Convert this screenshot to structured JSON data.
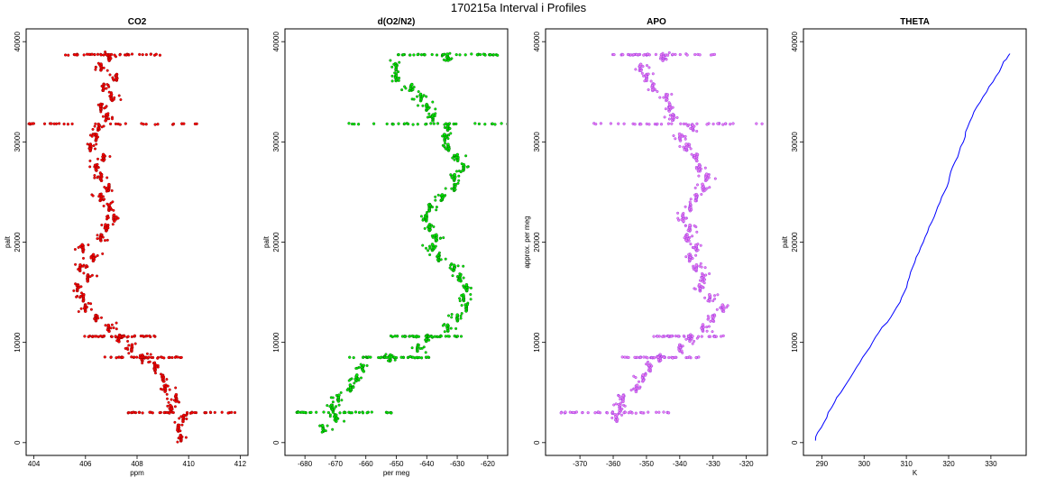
{
  "figure": {
    "title": "170215a   Interval i Profiles"
  },
  "chart_data": [
    {
      "type": "scatter",
      "title": "CO2",
      "xlabel": "ppm",
      "ylabel": "palt",
      "xlim": [
        404,
        412
      ],
      "ylim": [
        0,
        40000
      ],
      "xticks": [
        404,
        406,
        408,
        410,
        412
      ],
      "yticks": [
        0,
        10000,
        20000,
        30000,
        40000
      ],
      "marker_color": "#ff0000",
      "edge_color": "#7a0000",
      "series": [
        {
          "profile": [
            [
              409.7,
              500
            ],
            [
              409.6,
              1500
            ],
            [
              409.8,
              2500
            ],
            [
              409.3,
              3500
            ],
            [
              409.5,
              4500
            ],
            [
              409.1,
              5500
            ],
            [
              409.0,
              6500
            ],
            [
              408.7,
              7500
            ],
            [
              408.2,
              8500
            ],
            [
              407.8,
              9500
            ],
            [
              407.3,
              10500
            ],
            [
              406.9,
              11500
            ],
            [
              406.4,
              12500
            ],
            [
              406.0,
              13500
            ],
            [
              405.9,
              14500
            ],
            [
              405.7,
              15500
            ],
            [
              406.1,
              16500
            ],
            [
              405.8,
              17500
            ],
            [
              406.3,
              18500
            ],
            [
              405.9,
              19500
            ],
            [
              406.6,
              20500
            ],
            [
              406.8,
              21500
            ],
            [
              407.1,
              22500
            ],
            [
              406.9,
              23500
            ],
            [
              406.6,
              24500
            ],
            [
              406.9,
              25500
            ],
            [
              406.6,
              26500
            ],
            [
              406.4,
              27500
            ],
            [
              406.7,
              28500
            ],
            [
              406.2,
              29500
            ],
            [
              406.4,
              30500
            ],
            [
              406.5,
              31500
            ],
            [
              406.8,
              32500
            ],
            [
              406.6,
              33500
            ],
            [
              407.0,
              34500
            ],
            [
              406.7,
              35500
            ],
            [
              407.2,
              36500
            ],
            [
              406.6,
              37500
            ],
            [
              406.9,
              38500
            ]
          ]
        }
      ]
    },
    {
      "type": "scatter",
      "title": "d(O2/N2)",
      "xlabel": "per meg",
      "ylabel": "palt",
      "xlim": [
        -684,
        -616
      ],
      "ylim": [
        0,
        40000
      ],
      "xticks": [
        -680,
        -670,
        -660,
        -650,
        -640,
        -630,
        -620
      ],
      "yticks": [
        0,
        10000,
        20000,
        30000,
        40000
      ],
      "marker_color": "#00ee00",
      "edge_color": "#005500",
      "series": [
        {
          "profile": [
            [
              -674,
              1500
            ],
            [
              -670,
              2500
            ],
            [
              -671,
              3500
            ],
            [
              -669,
              4500
            ],
            [
              -665,
              5500
            ],
            [
              -663,
              6500
            ],
            [
              -661,
              7500
            ],
            [
              -652,
              8500
            ],
            [
              -643,
              9500
            ],
            [
              -640,
              10500
            ],
            [
              -633,
              11500
            ],
            [
              -630,
              12500
            ],
            [
              -627,
              13500
            ],
            [
              -628,
              14500
            ],
            [
              -627,
              15500
            ],
            [
              -629,
              16500
            ],
            [
              -631,
              17500
            ],
            [
              -636,
              18500
            ],
            [
              -638,
              19500
            ],
            [
              -637,
              20500
            ],
            [
              -639,
              21500
            ],
            [
              -640,
              22500
            ],
            [
              -639,
              23500
            ],
            [
              -635,
              24500
            ],
            [
              -631,
              25500
            ],
            [
              -631,
              26500
            ],
            [
              -628,
              27500
            ],
            [
              -630,
              28500
            ],
            [
              -633,
              29500
            ],
            [
              -634,
              30500
            ],
            [
              -633,
              31500
            ],
            [
              -638,
              32500
            ],
            [
              -640,
              33500
            ],
            [
              -642,
              34500
            ],
            [
              -645,
              35500
            ],
            [
              -650,
              36500
            ],
            [
              -650,
              37500
            ],
            [
              -633,
              38500
            ]
          ]
        }
      ]
    },
    {
      "type": "scatter",
      "title": "APO",
      "xlabel": "",
      "ylabel": "approx. per meg",
      "xlim": [
        -378,
        -316
      ],
      "ylim": [
        0,
        40000
      ],
      "xticks": [
        -370,
        -360,
        -350,
        -340,
        -330,
        -320
      ],
      "yticks": [
        0,
        10000,
        20000,
        30000,
        40000
      ],
      "marker_color": "#ee82ee",
      "edge_color": "#8a2be2",
      "series": [
        {
          "profile": [
            [
              -359,
              2500
            ],
            [
              -358,
              3500
            ],
            [
              -357,
              4500
            ],
            [
              -353,
              5500
            ],
            [
              -351,
              6500
            ],
            [
              -349,
              7500
            ],
            [
              -346,
              8500
            ],
            [
              -340,
              9500
            ],
            [
              -337,
              10500
            ],
            [
              -333,
              11500
            ],
            [
              -330,
              12500
            ],
            [
              -327,
              13500
            ],
            [
              -331,
              14500
            ],
            [
              -334,
              15500
            ],
            [
              -333,
              16500
            ],
            [
              -335,
              17500
            ],
            [
              -337,
              18500
            ],
            [
              -335,
              19500
            ],
            [
              -338,
              20500
            ],
            [
              -337,
              21500
            ],
            [
              -339,
              22500
            ],
            [
              -337,
              23500
            ],
            [
              -335,
              24500
            ],
            [
              -333,
              25500
            ],
            [
              -332,
              26500
            ],
            [
              -334,
              27500
            ],
            [
              -335,
              28500
            ],
            [
              -338,
              29500
            ],
            [
              -340,
              30500
            ],
            [
              -336,
              31500
            ],
            [
              -342,
              32500
            ],
            [
              -343,
              33500
            ],
            [
              -344,
              34500
            ],
            [
              -348,
              35500
            ],
            [
              -350,
              36500
            ],
            [
              -352,
              37500
            ],
            [
              -345,
              38500
            ]
          ]
        }
      ]
    },
    {
      "type": "line",
      "title": "THETA",
      "xlabel": "K",
      "ylabel": "palt",
      "xlim": [
        287.5,
        336.5
      ],
      "ylim": [
        0,
        40000
      ],
      "xticks": [
        290,
        300,
        310,
        320,
        330
      ],
      "yticks": [
        0,
        10000,
        20000,
        30000,
        40000
      ],
      "line_color": "#0000ff",
      "series": [
        {
          "x": [
            288.5,
            289.0,
            290.5,
            291.5,
            293.0,
            294.5,
            296.0,
            297.5,
            299.0,
            300.5,
            302.0,
            303.5,
            305.5,
            307.0,
            308.5,
            309.5,
            310.3,
            311.0,
            312.0,
            313.0,
            314.0,
            315.0,
            316.0,
            317.0,
            318.0,
            319.0,
            320.0,
            320.5,
            321.5,
            322.5,
            323.5,
            324.0,
            325.0,
            326.0,
            327.5,
            329.0,
            330.5,
            332.0,
            333.0,
            334.0,
            334.5
          ],
          "y": [
            200,
            1000,
            2000,
            3000,
            4000,
            5000,
            6000,
            7000,
            8000,
            9000,
            10000,
            11000,
            12000,
            13000,
            14000,
            15000,
            16000,
            17000,
            18000,
            19000,
            20000,
            21000,
            22000,
            23000,
            24000,
            25000,
            26000,
            27000,
            28000,
            29000,
            30000,
            31000,
            32000,
            33000,
            34000,
            35000,
            36000,
            37000,
            38000,
            38500,
            38800
          ]
        }
      ]
    }
  ]
}
